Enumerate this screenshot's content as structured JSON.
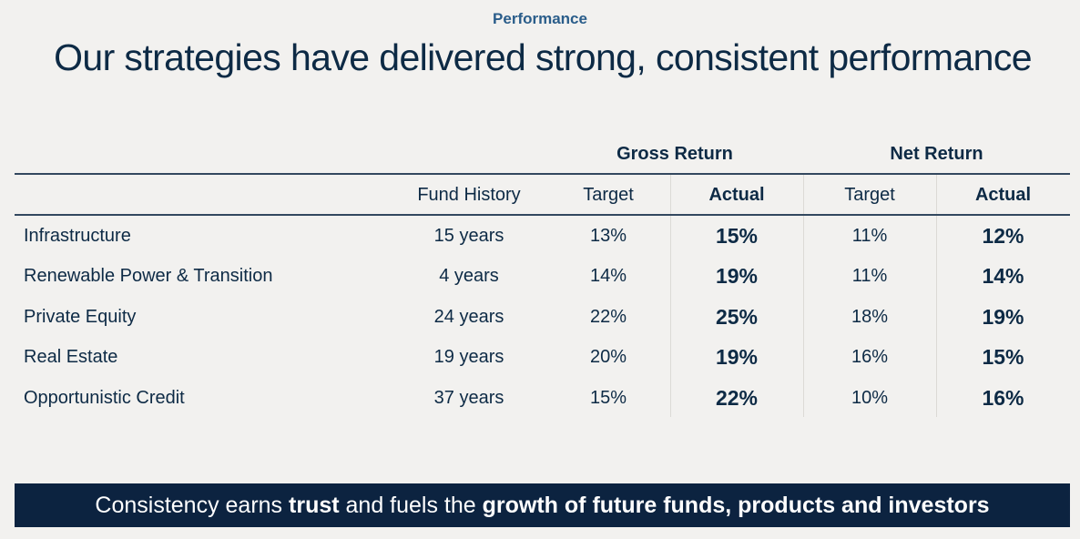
{
  "eyebrow": "Performance",
  "title": "Our strategies have delivered strong, consistent performance",
  "table": {
    "group_headers": {
      "gross": "Gross Return",
      "net": "Net Return"
    },
    "columns": [
      "",
      "Fund History",
      "Target",
      "Actual",
      "Target",
      "Actual"
    ],
    "rows": [
      {
        "name": "Infrastructure",
        "history": "15 years",
        "gross_target": "13%",
        "gross_actual": "15%",
        "net_target": "11%",
        "net_actual": "12%"
      },
      {
        "name": "Renewable Power & Transition",
        "history": "4 years",
        "gross_target": "14%",
        "gross_actual": "19%",
        "net_target": "11%",
        "net_actual": "14%"
      },
      {
        "name": "Private Equity",
        "history": "24 years",
        "gross_target": "22%",
        "gross_actual": "25%",
        "net_target": "18%",
        "net_actual": "19%"
      },
      {
        "name": "Real Estate",
        "history": "19 years",
        "gross_target": "20%",
        "gross_actual": "19%",
        "net_target": "16%",
        "net_actual": "15%"
      },
      {
        "name": "Opportunistic Credit",
        "history": "37 years",
        "gross_target": "15%",
        "gross_actual": "22%",
        "net_target": "10%",
        "net_actual": "16%"
      }
    ]
  },
  "banner": {
    "p1": "Consistency earns ",
    "b1": "trust",
    "p2": " and fuels the ",
    "b2": "growth of future funds, products and investors"
  }
}
